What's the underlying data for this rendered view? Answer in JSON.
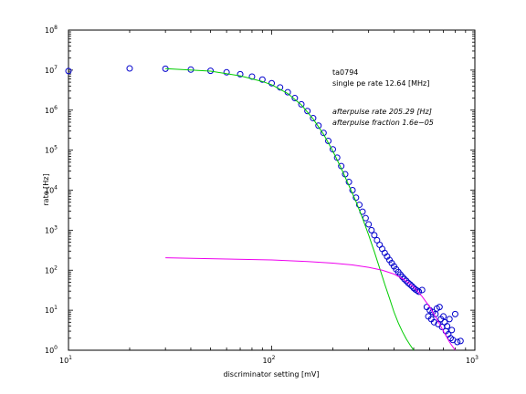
{
  "chart_data": {
    "type": "scatter",
    "title": "",
    "xlabel": "discriminator setting [mV]",
    "ylabel": "rate [Hz]",
    "xscale": "log",
    "yscale": "log",
    "xlim": [
      10,
      1000
    ],
    "ylim": [
      1,
      100000000
    ],
    "grid": false,
    "x_ticks": [
      {
        "base": "10",
        "exp": "1"
      },
      {
        "base": "10",
        "exp": "2"
      },
      {
        "base": "10",
        "exp": "3"
      }
    ],
    "y_ticks": [
      {
        "base": "10",
        "exp": "0"
      },
      {
        "base": "10",
        "exp": "1"
      },
      {
        "base": "10",
        "exp": "2"
      },
      {
        "base": "10",
        "exp": "3"
      },
      {
        "base": "10",
        "exp": "4"
      },
      {
        "base": "10",
        "exp": "5"
      },
      {
        "base": "10",
        "exp": "6"
      },
      {
        "base": "10",
        "exp": "7"
      },
      {
        "base": "10",
        "exp": "8"
      }
    ],
    "annotations": [
      {
        "text": "ta0794",
        "style": "normal"
      },
      {
        "text": "single pe rate 12.64 [MHz]",
        "style": "normal"
      },
      {
        "text": "afterpulse rate 205.29 [Hz]",
        "style": "italic"
      },
      {
        "text": "afterpulse fraction 1.6e−05",
        "style": "italic"
      }
    ],
    "series": [
      {
        "mark": "circle",
        "color": "#0000cc",
        "points": [
          [
            10,
            9500000.0
          ],
          [
            20,
            11000000.0
          ],
          [
            30,
            10800000.0
          ],
          [
            40,
            10300000.0
          ],
          [
            50,
            9600000.0
          ],
          [
            60,
            8800000.0
          ],
          [
            70,
            7900000.0
          ],
          [
            80,
            6900000.0
          ],
          [
            90,
            5800000.0
          ],
          [
            100,
            4700000.0
          ],
          [
            110,
            3700000.0
          ],
          [
            120,
            2800000.0
          ],
          [
            130,
            2000000.0
          ],
          [
            140,
            1400000.0
          ],
          [
            150,
            950000.0
          ],
          [
            160,
            630000.0
          ],
          [
            170,
            410000.0
          ],
          [
            180,
            270000.0
          ],
          [
            190,
            170000.0
          ],
          [
            200,
            105000.0
          ],
          [
            210,
            65000.0
          ],
          [
            220,
            40000.0
          ],
          [
            230,
            25000.0
          ],
          [
            240,
            16000.0
          ],
          [
            250,
            10000.0
          ],
          [
            260,
            6500.0
          ],
          [
            270,
            4300.0
          ],
          [
            280,
            2900.0
          ],
          [
            290,
            2000.0
          ],
          [
            300,
            1400.0
          ],
          [
            310,
            1000.0
          ],
          [
            320,
            750
          ],
          [
            330,
            560
          ],
          [
            340,
            430
          ],
          [
            350,
            340
          ],
          [
            360,
            270
          ],
          [
            370,
            220
          ],
          [
            380,
            180
          ],
          [
            390,
            150
          ],
          [
            400,
            125
          ],
          [
            410,
            105
          ],
          [
            420,
            90
          ],
          [
            430,
            78
          ],
          [
            440,
            68
          ],
          [
            450,
            60
          ],
          [
            460,
            54
          ],
          [
            470,
            48
          ],
          [
            480,
            44
          ],
          [
            490,
            40
          ],
          [
            500,
            36
          ],
          [
            510,
            33
          ],
          [
            520,
            31
          ],
          [
            530,
            29
          ],
          [
            550,
            32
          ],
          [
            580,
            12
          ],
          [
            590,
            7
          ],
          [
            600,
            10
          ],
          [
            610,
            6
          ],
          [
            620,
            9
          ],
          [
            630,
            5
          ],
          [
            640,
            8
          ],
          [
            650,
            11
          ],
          [
            660,
            4.5
          ],
          [
            670,
            12
          ],
          [
            680,
            6
          ],
          [
            690,
            3.8
          ],
          [
            700,
            7
          ],
          [
            710,
            5
          ],
          [
            720,
            3
          ],
          [
            730,
            4
          ],
          [
            740,
            2.5
          ],
          [
            750,
            6
          ],
          [
            760,
            2
          ],
          [
            770,
            3.2
          ],
          [
            780,
            1.8
          ],
          [
            800,
            8
          ],
          [
            820,
            1.6
          ],
          [
            850,
            1.7
          ]
        ]
      },
      {
        "mark": "line",
        "color": "#00cc00",
        "points": [
          [
            30,
            10900000.0
          ],
          [
            50,
            9400000.0
          ],
          [
            70,
            7200000.0
          ],
          [
            90,
            5200000.0
          ],
          [
            100,
            4300000.0
          ],
          [
            120,
            2600000.0
          ],
          [
            140,
            1350000.0
          ],
          [
            160,
            600000.0
          ],
          [
            180,
            250000.0
          ],
          [
            200,
            95000.0
          ],
          [
            220,
            35000.0
          ],
          [
            240,
            13000.0
          ],
          [
            260,
            5200.0
          ],
          [
            280,
            2000.0
          ],
          [
            300,
            760
          ],
          [
            320,
            290
          ],
          [
            340,
            112
          ],
          [
            360,
            45
          ],
          [
            380,
            20
          ],
          [
            400,
            9
          ],
          [
            420,
            4.8
          ],
          [
            440,
            2.9
          ],
          [
            460,
            1.9
          ],
          [
            480,
            1.35
          ],
          [
            500,
            1.0
          ]
        ]
      },
      {
        "mark": "line",
        "color": "#ee00ee",
        "points": [
          [
            30,
            205
          ],
          [
            60,
            190
          ],
          [
            100,
            180
          ],
          [
            150,
            165
          ],
          [
            200,
            150
          ],
          [
            250,
            135
          ],
          [
            300,
            118
          ],
          [
            350,
            100
          ],
          [
            400,
            80
          ],
          [
            450,
            58
          ],
          [
            500,
            38
          ],
          [
            550,
            22
          ],
          [
            600,
            12
          ],
          [
            650,
            6
          ],
          [
            700,
            3
          ],
          [
            750,
            1.6
          ],
          [
            800,
            1.0
          ]
        ]
      }
    ]
  }
}
